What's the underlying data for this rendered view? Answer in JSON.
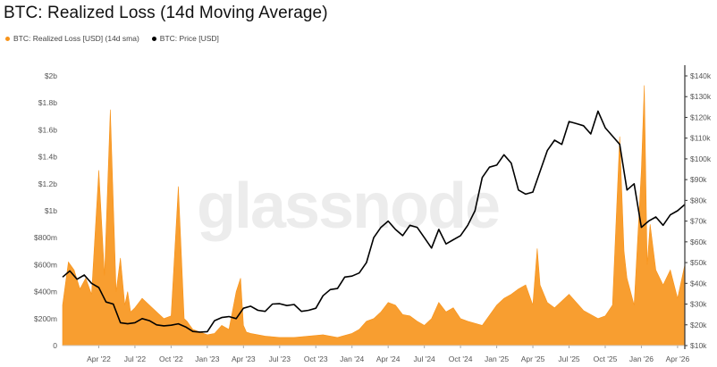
{
  "title": "BTC: Realized Loss (14d Moving Average)",
  "watermark": "glassnode",
  "legend": [
    {
      "label": "BTC: Realized Loss [USD] (14d sma)",
      "color": "#f7931a"
    },
    {
      "label": "BTC: Price [USD]",
      "color": "#000000"
    }
  ],
  "chart_data": {
    "type": "area",
    "x_ticks": [
      "Apr '22",
      "Jul '22",
      "Oct '22",
      "Jan '23",
      "Apr '23",
      "Jul '23",
      "Oct '23",
      "Jan '24",
      "Apr '24",
      "Jul '24",
      "Oct '24",
      "Jan '25",
      "Apr '25",
      "Jul '25",
      "Oct '25",
      "Jan '26",
      "Apr '26"
    ],
    "y_left": {
      "label": "",
      "ticks": [
        "0",
        "$200m",
        "$400m",
        "$600m",
        "$800m",
        "$1b",
        "$1.2b",
        "$1.4b",
        "$1.6b",
        "$1.8b",
        "$2b"
      ],
      "range": [
        0,
        2000
      ]
    },
    "y_right": {
      "label": "",
      "ticks": [
        "$10k",
        "$20k",
        "$30k",
        "$40k",
        "$50k",
        "$60k",
        "$70k",
        "$80k",
        "$90k",
        "$100k",
        "$110k",
        "$120k",
        "$130k",
        "$140k"
      ],
      "range": [
        10000,
        140000
      ]
    },
    "series": [
      {
        "name": "BTC: Realized Loss [USD] (14d sma)",
        "color": "#f7931a",
        "axis": "left",
        "unit": "USD millions",
        "x": [
          2022.0,
          2022.04,
          2022.08,
          2022.12,
          2022.16,
          2022.2,
          2022.25,
          2022.29,
          2022.33,
          2022.37,
          2022.4,
          2022.43,
          2022.45,
          2022.47,
          2022.5,
          2022.55,
          2022.6,
          2022.65,
          2022.7,
          2022.75,
          2022.8,
          2022.84,
          2022.86,
          2022.88,
          2022.9,
          2022.95,
          2023.0,
          2023.05,
          2023.1,
          2023.15,
          2023.2,
          2023.23,
          2023.25,
          2023.27,
          2023.3,
          2023.35,
          2023.4,
          2023.5,
          2023.6,
          2023.7,
          2023.8,
          2023.9,
          2024.0,
          2024.05,
          2024.1,
          2024.15,
          2024.2,
          2024.25,
          2024.3,
          2024.35,
          2024.4,
          2024.45,
          2024.5,
          2024.55,
          2024.6,
          2024.65,
          2024.7,
          2024.75,
          2024.8,
          2024.9,
          2025.0,
          2025.05,
          2025.1,
          2025.15,
          2025.2,
          2025.25,
          2025.28,
          2025.3,
          2025.35,
          2025.4,
          2025.5,
          2025.6,
          2025.7,
          2025.75,
          2025.8,
          2025.85,
          2025.88,
          2025.9,
          2025.95,
          2026.0,
          2026.02,
          2026.04,
          2026.06,
          2026.1,
          2026.15,
          2026.2,
          2026.25,
          2026.3
        ],
        "values": [
          300,
          620,
          560,
          420,
          500,
          380,
          1300,
          520,
          1750,
          400,
          650,
          300,
          400,
          250,
          280,
          350,
          300,
          250,
          200,
          220,
          1180,
          200,
          180,
          150,
          120,
          100,
          80,
          90,
          150,
          120,
          400,
          500,
          150,
          100,
          90,
          80,
          70,
          60,
          60,
          70,
          80,
          60,
          90,
          120,
          180,
          200,
          250,
          320,
          300,
          230,
          220,
          180,
          150,
          200,
          320,
          250,
          280,
          200,
          180,
          150,
          300,
          350,
          380,
          420,
          450,
          300,
          720,
          450,
          320,
          280,
          380,
          260,
          200,
          220,
          300,
          1550,
          700,
          500,
          300,
          1300,
          1930,
          600,
          900,
          560,
          450,
          560,
          350,
          600
        ]
      },
      {
        "name": "BTC: Price [USD]",
        "color": "#000000",
        "axis": "right",
        "unit": "USD",
        "x": [
          2022.0,
          2022.05,
          2022.1,
          2022.15,
          2022.2,
          2022.25,
          2022.3,
          2022.35,
          2022.4,
          2022.45,
          2022.5,
          2022.55,
          2022.6,
          2022.65,
          2022.7,
          2022.75,
          2022.8,
          2022.85,
          2022.9,
          2022.95,
          2023.0,
          2023.05,
          2023.1,
          2023.15,
          2023.2,
          2023.25,
          2023.3,
          2023.35,
          2023.4,
          2023.45,
          2023.5,
          2023.55,
          2023.6,
          2023.65,
          2023.7,
          2023.75,
          2023.8,
          2023.85,
          2023.9,
          2023.95,
          2024.0,
          2024.05,
          2024.1,
          2024.15,
          2024.2,
          2024.25,
          2024.3,
          2024.35,
          2024.4,
          2024.45,
          2024.5,
          2024.55,
          2024.6,
          2024.65,
          2024.7,
          2024.75,
          2024.8,
          2024.85,
          2024.9,
          2024.95,
          2025.0,
          2025.05,
          2025.1,
          2025.15,
          2025.2,
          2025.25,
          2025.3,
          2025.35,
          2025.4,
          2025.45,
          2025.5,
          2025.55,
          2025.6,
          2025.65,
          2025.7,
          2025.75,
          2025.8,
          2025.85,
          2025.9,
          2025.95,
          2026.0,
          2026.05,
          2026.1,
          2026.15,
          2026.2,
          2026.25,
          2026.3
        ],
        "values": [
          43000,
          46000,
          42000,
          44000,
          40000,
          38000,
          31000,
          30000,
          21000,
          20500,
          21000,
          23000,
          22000,
          20000,
          19500,
          19800,
          20500,
          19000,
          16800,
          16500,
          16700,
          22000,
          23500,
          24000,
          23000,
          28000,
          29000,
          27000,
          26500,
          30000,
          30200,
          29300,
          29800,
          26500,
          27000,
          28000,
          34000,
          37000,
          37500,
          43000,
          43500,
          45000,
          50000,
          62000,
          67000,
          70000,
          66000,
          63000,
          68000,
          67000,
          62000,
          57000,
          66000,
          59000,
          61000,
          63000,
          68000,
          75000,
          91000,
          96000,
          97000,
          102000,
          98000,
          85000,
          83000,
          84000,
          94000,
          104000,
          109000,
          107000,
          118000,
          117000,
          116000,
          112000,
          123000,
          115000,
          111000,
          107000,
          85000,
          88000,
          67000,
          70000,
          72000,
          68000,
          73000,
          75000,
          78000
        ]
      }
    ],
    "xlim": [
      2022.0,
      2026.3
    ],
    "grid": false
  }
}
